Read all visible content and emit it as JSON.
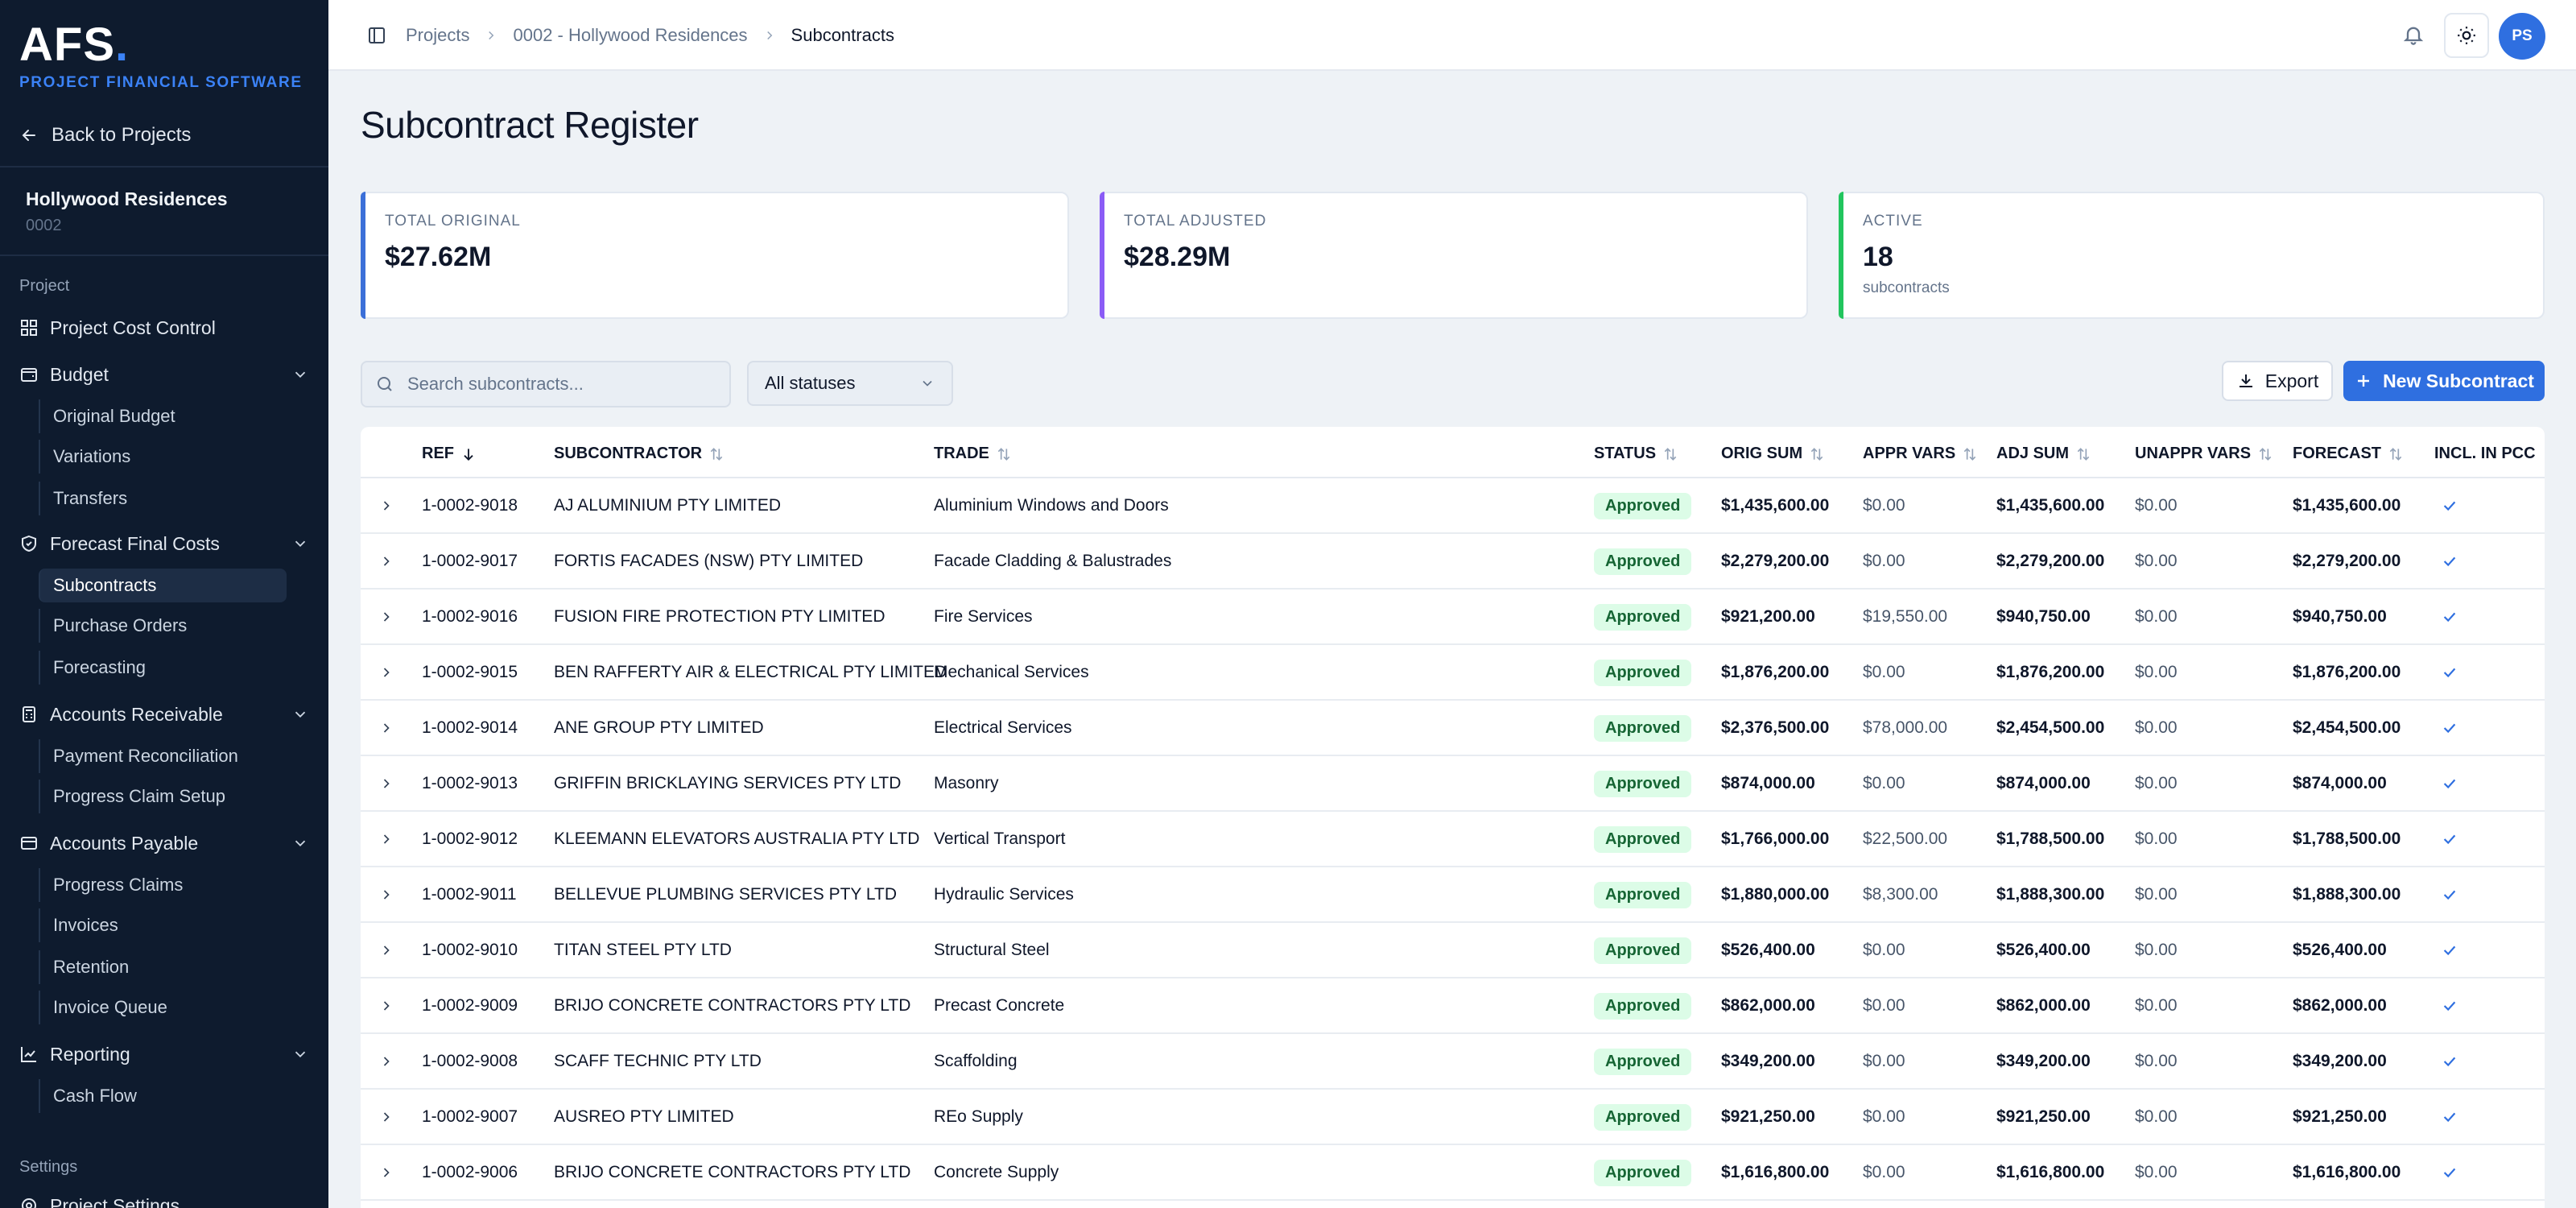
{
  "app": {
    "logo_text": "AFS",
    "logo_dot": ".",
    "logo_subtitle": "PROJECT FINANCIAL SOFTWARE"
  },
  "sidebar": {
    "back_label": "Back to Projects",
    "project_name": "Hollywood Residences",
    "project_code": "0002",
    "section_project": "Project",
    "project_cost_control": "Project Cost Control",
    "budget": {
      "label": "Budget",
      "items": [
        "Original Budget",
        "Variations",
        "Transfers"
      ]
    },
    "forecast": {
      "label": "Forecast Final Costs",
      "items": [
        "Subcontracts",
        "Purchase Orders",
        "Forecasting"
      ]
    },
    "receivable": {
      "label": "Accounts Receivable",
      "items": [
        "Payment Reconciliation",
        "Progress Claim Setup"
      ]
    },
    "payable": {
      "label": "Accounts Payable",
      "items": [
        "Progress Claims",
        "Invoices",
        "Retention",
        "Invoice Queue"
      ]
    },
    "reporting": {
      "label": "Reporting",
      "items": [
        "Cash Flow"
      ]
    },
    "section_settings": "Settings",
    "project_settings": "Project Settings"
  },
  "topbar": {
    "breadcrumb": [
      "Projects",
      "0002 - Hollywood Residences",
      "Subcontracts"
    ],
    "avatar_initials": "PS",
    "icons": [
      "sidebar-toggle-icon",
      "bell-icon",
      "sun-icon"
    ]
  },
  "page": {
    "title": "Subcontract Register"
  },
  "summary": [
    {
      "label": "TOTAL ORIGINAL",
      "value": "$27.62M",
      "sub": "",
      "accent": "#3b6fd8"
    },
    {
      "label": "TOTAL ADJUSTED",
      "value": "$28.29M",
      "sub": "",
      "accent": "#8b5cf6"
    },
    {
      "label": "ACTIVE",
      "value": "18",
      "sub": "subcontracts",
      "accent": "#22c55e"
    }
  ],
  "filters": {
    "search_placeholder": "Search subcontracts...",
    "status_value": "All statuses",
    "export_label": "Export",
    "new_label": "New Subcontract"
  },
  "table": {
    "columns": [
      "REF",
      "SUBCONTRACTOR",
      "TRADE",
      "STATUS",
      "ORIG SUM",
      "APPR VARS",
      "ADJ SUM",
      "UNAPPR VARS",
      "FORECAST",
      "INCL. IN PCC"
    ],
    "rows": [
      {
        "ref": "1-0002-9018",
        "sub": "AJ ALUMINIUM PTY LIMITED",
        "trade": "Aluminium Windows and Doors",
        "status": "Approved",
        "orig": "$1,435,600.00",
        "appr": "$0.00",
        "adj": "$1,435,600.00",
        "unappr": "$0.00",
        "forecast": "$1,435,600.00"
      },
      {
        "ref": "1-0002-9017",
        "sub": "FORTIS FACADES (NSW) PTY LIMITED",
        "trade": "Facade Cladding & Balustrades",
        "status": "Approved",
        "orig": "$2,279,200.00",
        "appr": "$0.00",
        "adj": "$2,279,200.00",
        "unappr": "$0.00",
        "forecast": "$2,279,200.00"
      },
      {
        "ref": "1-0002-9016",
        "sub": "FUSION FIRE PROTECTION PTY LIMITED",
        "trade": "Fire Services",
        "status": "Approved",
        "orig": "$921,200.00",
        "appr": "$19,550.00",
        "adj": "$940,750.00",
        "unappr": "$0.00",
        "forecast": "$940,750.00"
      },
      {
        "ref": "1-0002-9015",
        "sub": "BEN RAFFERTY AIR & ELECTRICAL PTY LIMITED",
        "trade": "Mechanical Services",
        "status": "Approved",
        "orig": "$1,876,200.00",
        "appr": "$0.00",
        "adj": "$1,876,200.00",
        "unappr": "$0.00",
        "forecast": "$1,876,200.00"
      },
      {
        "ref": "1-0002-9014",
        "sub": "ANE GROUP PTY LIMITED",
        "trade": "Electrical Services",
        "status": "Approved",
        "orig": "$2,376,500.00",
        "appr": "$78,000.00",
        "adj": "$2,454,500.00",
        "unappr": "$0.00",
        "forecast": "$2,454,500.00"
      },
      {
        "ref": "1-0002-9013",
        "sub": "GRIFFIN BRICKLAYING SERVICES PTY LTD",
        "trade": "Masonry",
        "status": "Approved",
        "orig": "$874,000.00",
        "appr": "$0.00",
        "adj": "$874,000.00",
        "unappr": "$0.00",
        "forecast": "$874,000.00"
      },
      {
        "ref": "1-0002-9012",
        "sub": "KLEEMANN ELEVATORS AUSTRALIA PTY LTD",
        "trade": "Vertical Transport",
        "status": "Approved",
        "orig": "$1,766,000.00",
        "appr": "$22,500.00",
        "adj": "$1,788,500.00",
        "unappr": "$0.00",
        "forecast": "$1,788,500.00"
      },
      {
        "ref": "1-0002-9011",
        "sub": "BELLEVUE PLUMBING SERVICES PTY LTD",
        "trade": "Hydraulic Services",
        "status": "Approved",
        "orig": "$1,880,000.00",
        "appr": "$8,300.00",
        "adj": "$1,888,300.00",
        "unappr": "$0.00",
        "forecast": "$1,888,300.00"
      },
      {
        "ref": "1-0002-9010",
        "sub": "TITAN STEEL PTY LTD",
        "trade": "Structural Steel",
        "status": "Approved",
        "orig": "$526,400.00",
        "appr": "$0.00",
        "adj": "$526,400.00",
        "unappr": "$0.00",
        "forecast": "$526,400.00"
      },
      {
        "ref": "1-0002-9009",
        "sub": "BRIJO CONCRETE CONTRACTORS PTY LTD",
        "trade": "Precast Concrete",
        "status": "Approved",
        "orig": "$862,000.00",
        "appr": "$0.00",
        "adj": "$862,000.00",
        "unappr": "$0.00",
        "forecast": "$862,000.00"
      },
      {
        "ref": "1-0002-9008",
        "sub": "SCAFF TECHNIC PTY LTD",
        "trade": "Scaffolding",
        "status": "Approved",
        "orig": "$349,200.00",
        "appr": "$0.00",
        "adj": "$349,200.00",
        "unappr": "$0.00",
        "forecast": "$349,200.00"
      },
      {
        "ref": "1-0002-9007",
        "sub": "AUSREO PTY LIMITED",
        "trade": "REo Supply",
        "status": "Approved",
        "orig": "$921,250.00",
        "appr": "$0.00",
        "adj": "$921,250.00",
        "unappr": "$0.00",
        "forecast": "$921,250.00"
      },
      {
        "ref": "1-0002-9006",
        "sub": "BRIJO CONCRETE CONTRACTORS PTY LTD",
        "trade": "Concrete Supply",
        "status": "Approved",
        "orig": "$1,616,800.00",
        "appr": "$0.00",
        "adj": "$1,616,800.00",
        "unappr": "$0.00",
        "forecast": "$1,616,800.00"
      }
    ]
  },
  "colors": {
    "sidebar_bg": "#0e1b2e",
    "brand_blue": "#2f6fe0",
    "approved_bg": "#dcfce7",
    "approved_text": "#166534"
  }
}
